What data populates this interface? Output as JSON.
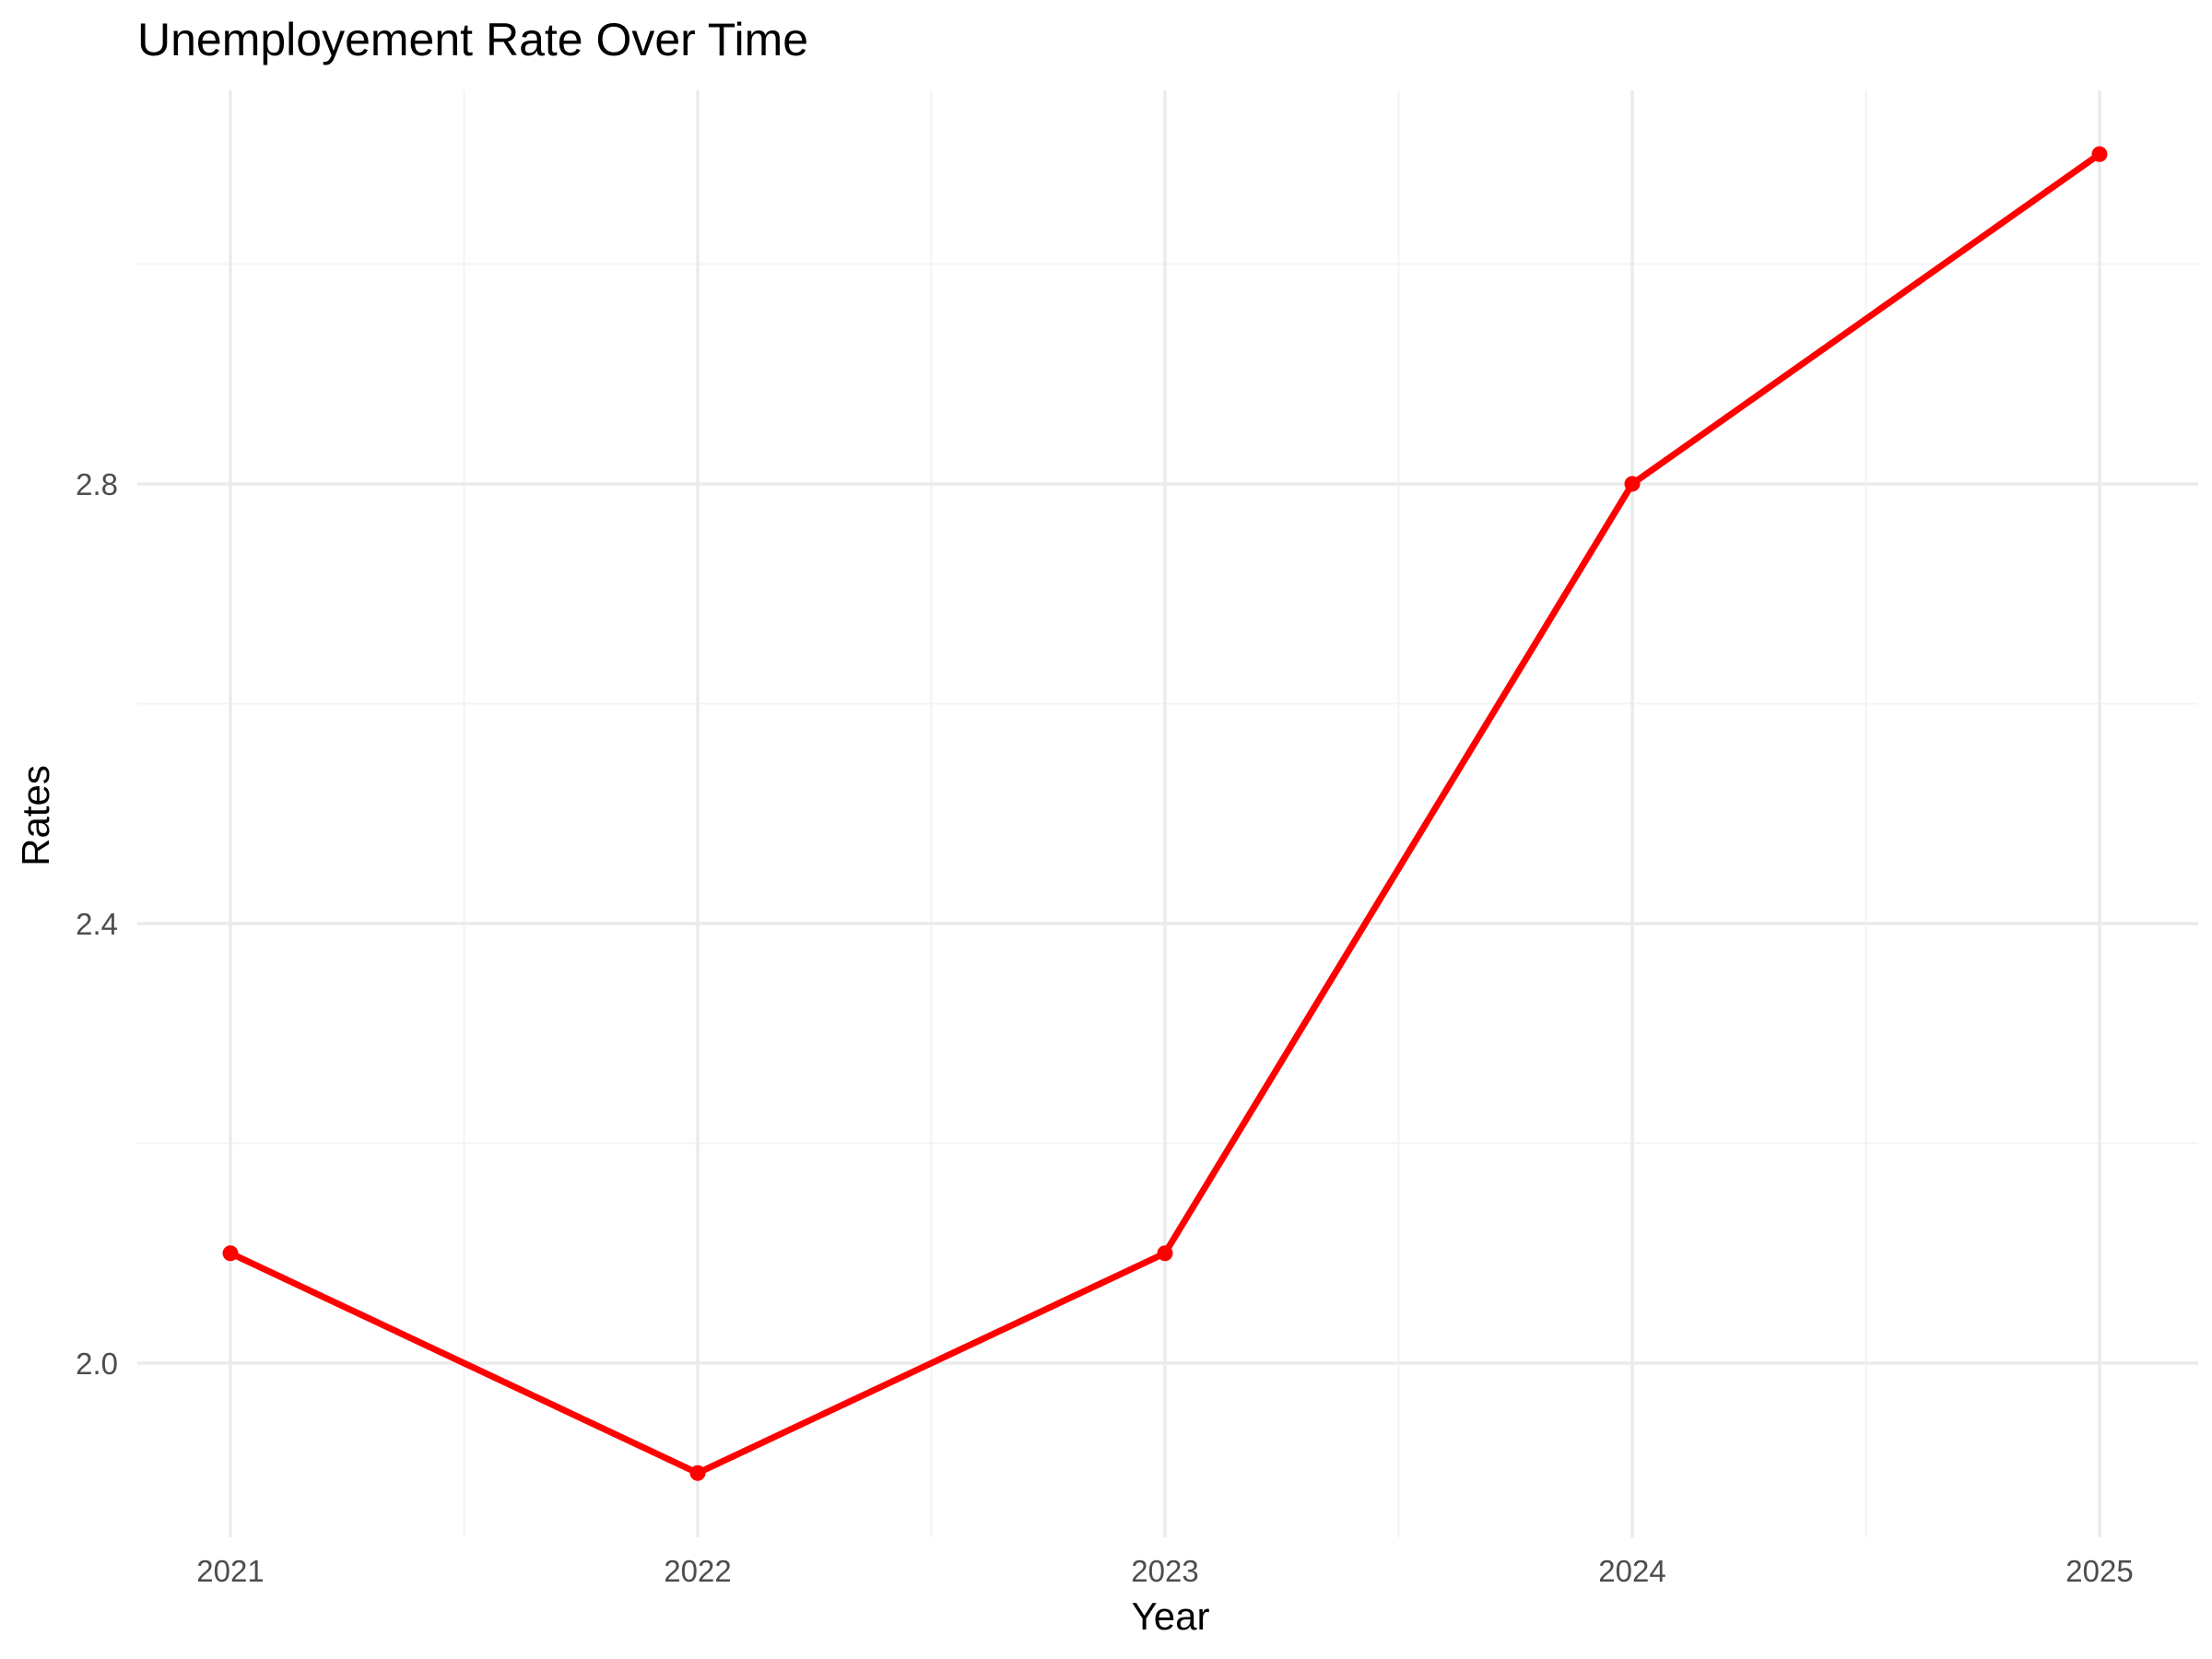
{
  "chart_data": {
    "type": "line",
    "title": "Unemployement Rate Over Time",
    "xlabel": "Year",
    "ylabel": "Rates",
    "x": [
      2021,
      2022,
      2023,
      2024,
      2025
    ],
    "x_tick_labels": [
      "2021",
      "2022",
      "2023",
      "2024",
      "2025"
    ],
    "y_ticks": [
      2.0,
      2.4,
      2.8
    ],
    "y_tick_labels": [
      "2.0",
      "2.4",
      "2.8"
    ],
    "xlim": [
      2020.8,
      2025.2
    ],
    "ylim": [
      1.8,
      3.1
    ],
    "grid": true,
    "legend": "none",
    "series": [
      {
        "values": [
          2.1,
          1.9,
          2.1,
          2.8,
          3.1
        ],
        "color": "#ff0000"
      }
    ]
  }
}
